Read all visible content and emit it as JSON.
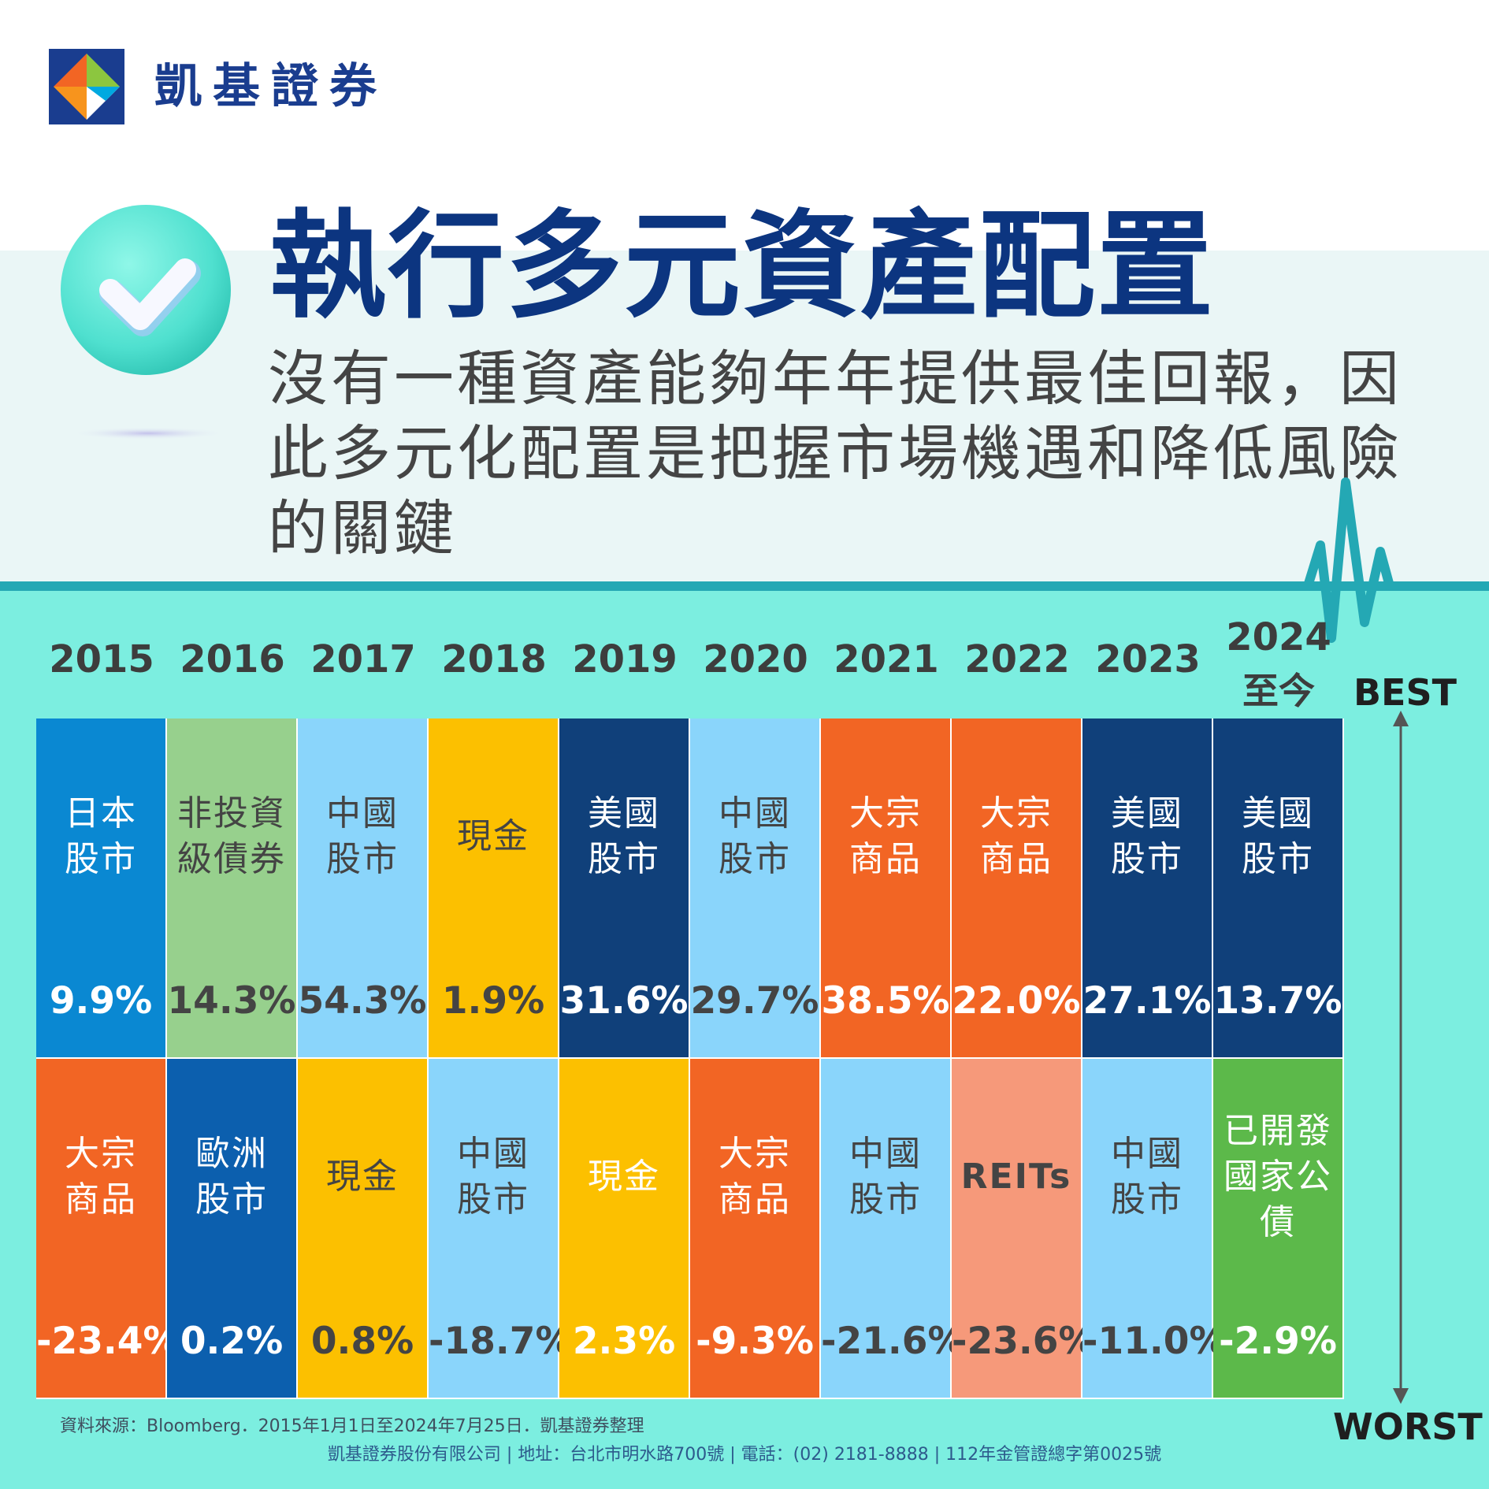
{
  "brand": {
    "name": "凱基證券"
  },
  "title": "執行多元資產配置",
  "subtitle": "沒有一種資產能夠年年提供最佳回報，因此多元化配置是把握市場機遇和降低風險的關鍵",
  "icons": {
    "logo": "kgi-logo-icon",
    "check": "check-circle-icon",
    "pulse": "heartbeat-line-icon",
    "axis": "double-arrow-icon"
  },
  "colors": {
    "teal_band": "#7ceee0",
    "light_band": "#eaf6f6",
    "title": "#0c3580",
    "japan_equity": "#0a88d2",
    "high_yield": "#97d08d",
    "china_equity": "#8ad5fb",
    "cash": "#fcc000",
    "us_equity": "#10407a",
    "commodities": "#f26524",
    "europe_equity": "#0c5fae",
    "reits": "#f6997a",
    "dm_govt_bonds": "#5cb94a"
  },
  "labels": {
    "best": "BEST",
    "worst": "WORST"
  },
  "chart_data": {
    "type": "table",
    "categories": [
      "2015",
      "2016",
      "2017",
      "2018",
      "2019",
      "2020",
      "2021",
      "2022",
      "2023",
      "2024"
    ],
    "category_sub": [
      "",
      "",
      "",
      "",
      "",
      "",
      "",
      "",
      "",
      "至今"
    ],
    "series": [
      {
        "name": "BEST",
        "assets": [
          "日本\n股市",
          "非投資\n級債券",
          "中國\n股市",
          "現金",
          "美國\n股市",
          "中國\n股市",
          "大宗\n商品",
          "大宗\n商品",
          "美國\n股市",
          "美國\n股市"
        ],
        "values": [
          9.9,
          14.3,
          54.3,
          1.9,
          31.6,
          29.7,
          38.5,
          22.0,
          27.1,
          13.7
        ],
        "display": [
          "9.9%",
          "14.3%",
          "54.3%",
          "1.9%",
          "31.6%",
          "29.7%",
          "38.5%",
          "22.0%",
          "27.1%",
          "13.7%"
        ],
        "colors": [
          "#0a88d2",
          "#97d08d",
          "#8ad5fb",
          "#fcc000",
          "#10407a",
          "#8ad5fb",
          "#f26524",
          "#f26524",
          "#10407a",
          "#10407a"
        ],
        "text_colors": [
          "#ffffff",
          "#444444",
          "#444444",
          "#444444",
          "#ffffff",
          "#444444",
          "#ffffff",
          "#ffffff",
          "#ffffff",
          "#ffffff"
        ]
      },
      {
        "name": "WORST",
        "assets": [
          "大宗\n商品",
          "歐洲\n股市",
          "現金",
          "中國\n股市",
          "現金",
          "大宗\n商品",
          "中國\n股市",
          "REITs",
          "中國\n股市",
          "已開發\n國家公\n債"
        ],
        "values": [
          -23.4,
          0.2,
          0.8,
          -18.7,
          2.3,
          -9.3,
          -21.6,
          -23.6,
          -11.0,
          -2.9
        ],
        "display": [
          "-23.4%",
          "0.2%",
          "0.8%",
          "-18.7%",
          "2.3%",
          "-9.3%",
          "-21.6%",
          "-23.6%",
          "-11.0%",
          "-2.9%"
        ],
        "colors": [
          "#f26524",
          "#0c5fae",
          "#fcc000",
          "#8ad5fb",
          "#fcc000",
          "#f26524",
          "#8ad5fb",
          "#f6997a",
          "#8ad5fb",
          "#5cb94a"
        ],
        "text_colors": [
          "#ffffff",
          "#ffffff",
          "#444444",
          "#444444",
          "#ffffff",
          "#ffffff",
          "#444444",
          "#444444",
          "#444444",
          "#ffffff"
        ]
      }
    ]
  },
  "source": "資料來源：Bloomberg．2015年1月1日至2024年7月25日．凱基證券整理",
  "footer": "凱基證券股份有限公司 | 地址：台北市明水路700號 | 電話：(02) 2181-8888 | 112年金管證總字第0025號"
}
